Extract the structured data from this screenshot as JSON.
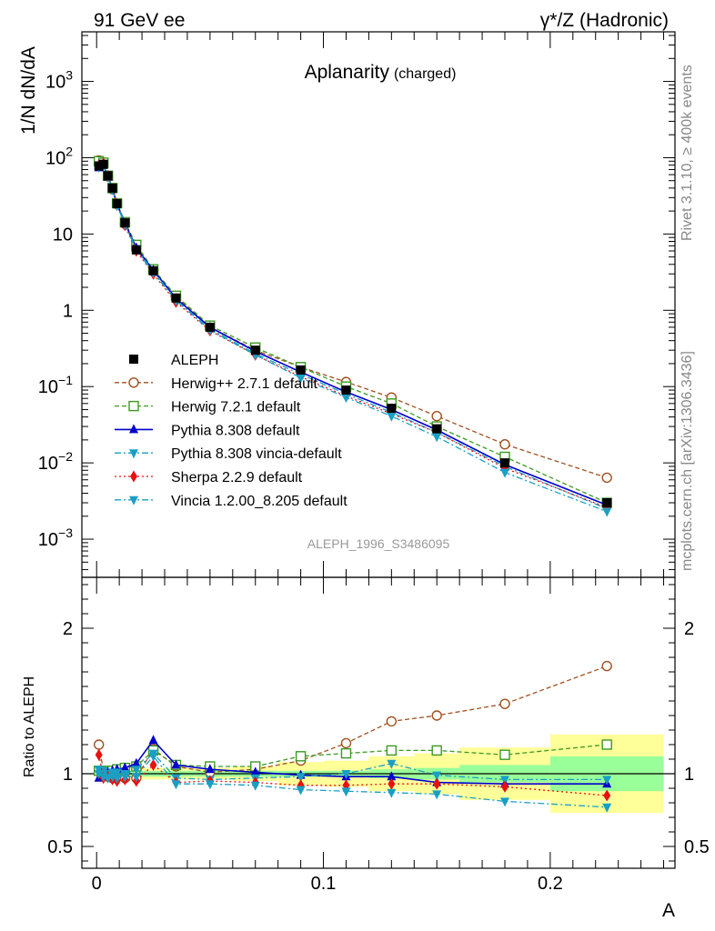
{
  "header": {
    "left": "91 GeV ee",
    "right": "γ*/Z (Hadronic)"
  },
  "title": "Aplanarity",
  "subtitle": "(charged)",
  "side_text": {
    "rivet": "Rivet 3.1.10, ≥ 400k events",
    "mcplots": "mcplots.cern.ch [arXiv:1306.3436]"
  },
  "analysis_label": "ALEPH_1996_S3486095",
  "main_ylabel": "1/N dN/dA",
  "ratio_ylabel": "Ratio to ALEPH",
  "xlabel": "A",
  "main_yticks": [
    {
      "value": 1000,
      "base": "10",
      "exp": "3"
    },
    {
      "value": 100,
      "base": "10",
      "exp": "2"
    },
    {
      "value": 10,
      "base": "10",
      "exp": ""
    },
    {
      "value": 1,
      "base": "1",
      "exp": ""
    },
    {
      "value": 0.1,
      "base": "10",
      "exp": "−1"
    },
    {
      "value": 0.01,
      "base": "10",
      "exp": "−2"
    },
    {
      "value": 0.001,
      "base": "10",
      "exp": "−3"
    }
  ],
  "ratio_yticks": [
    {
      "value": 2,
      "label": "2"
    },
    {
      "value": 1,
      "label": "1"
    },
    {
      "value": 0.5,
      "label": "0.5"
    }
  ],
  "xticks": [
    {
      "value": 0,
      "label": "0"
    },
    {
      "value": 0.1,
      "label": "0.1"
    },
    {
      "value": 0.2,
      "label": "0.2"
    }
  ],
  "colors": {
    "data": "#000000",
    "herwigpp": "#a0501e",
    "herwig7": "#3c9a22",
    "pythia": "#0000cc",
    "pythia_vincia": "#1a9fc4",
    "sherpa": "#e81010",
    "vincia": "#1a9fc4",
    "band_yellow": "#ffff99",
    "band_green": "#99ff99"
  },
  "chart_data": {
    "type": "line",
    "x": [
      0.001,
      0.003,
      0.005,
      0.007,
      0.009,
      0.0125,
      0.0175,
      0.025,
      0.035,
      0.05,
      0.07,
      0.09,
      0.11,
      0.13,
      0.15,
      0.18,
      0.225
    ],
    "xlim": [
      -0.0065,
      0.255
    ],
    "main_ylim_log10": [
      -3.5,
      3.65
    ],
    "ratio_ylim": [
      0.35,
      2.35
    ],
    "band_edges": [
      0.0,
      0.002,
      0.004,
      0.006,
      0.008,
      0.01,
      0.015,
      0.02,
      0.03,
      0.04,
      0.06,
      0.08,
      0.1,
      0.12,
      0.14,
      0.16,
      0.2,
      0.25
    ],
    "band_stat": [
      0.02,
      0.02,
      0.02,
      0.02,
      0.02,
      0.02,
      0.02,
      0.02,
      0.02,
      0.02,
      0.02,
      0.02,
      0.02,
      0.03,
      0.04,
      0.06,
      0.12
    ],
    "band_total": [
      0.04,
      0.04,
      0.04,
      0.04,
      0.04,
      0.04,
      0.04,
      0.04,
      0.04,
      0.04,
      0.05,
      0.08,
      0.09,
      0.12,
      0.14,
      0.18,
      0.27
    ],
    "data": {
      "name": "ALEPH",
      "values": [
        78,
        82,
        58,
        40,
        25,
        14,
        6.2,
        3.3,
        1.45,
        0.6,
        0.3,
        0.165,
        0.09,
        0.052,
        0.028,
        0.01,
        0.003
      ]
    },
    "series": [
      {
        "name": "Herwig++ 2.7.1 default",
        "values": [
          92,
          84,
          57,
          38.5,
          24.5,
          13.6,
          6.3,
          3.28,
          1.5,
          0.6,
          0.3,
          0.18,
          0.115,
          0.072,
          0.041,
          0.0175,
          0.0064
        ],
        "ratio": [
          1.2,
          1.02,
          0.98,
          0.97,
          0.98,
          0.97,
          0.97,
          1.17,
          1.05,
          1.01,
          1.03,
          1.09,
          1.21,
          1.36,
          1.4,
          1.48,
          1.74
        ],
        "color_key": "herwig7",
        "stroke_key": "herwigpp",
        "marker": "open-circle",
        "dash": "5,3"
      },
      {
        "name": "Herwig 7.2.1 default",
        "values": [
          90,
          86,
          58,
          40,
          25.3,
          14.3,
          7.2,
          3.45,
          1.55,
          0.63,
          0.325,
          0.18,
          0.1,
          0.06,
          0.03,
          0.012,
          0.003
        ],
        "ratio": [
          1.02,
          1.02,
          1.01,
          1.02,
          1.03,
          1.04,
          1.05,
          1.16,
          1.06,
          1.05,
          1.05,
          1.12,
          1.14,
          1.16,
          1.16,
          1.13,
          1.2
        ],
        "stroke_key": "herwig7",
        "marker": "open-square",
        "dash": "5,3"
      },
      {
        "name": "Pythia 8.308 default",
        "values": [
          74,
          80,
          56,
          39,
          24.5,
          13.8,
          6.6,
          3.35,
          1.43,
          0.6,
          0.29,
          0.155,
          0.085,
          0.05,
          0.027,
          0.0095,
          0.0028
        ],
        "ratio": [
          0.97,
          0.99,
          1.01,
          1.02,
          1.03,
          1.04,
          1.07,
          1.23,
          1.06,
          1.03,
          1.01,
          0.99,
          0.98,
          0.98,
          0.94,
          0.93,
          0.93
        ],
        "stroke_key": "pythia",
        "marker": "filled-triangle-up",
        "dash": ""
      },
      {
        "name": "Pythia 8.308 vincia-default",
        "values": [
          76,
          81,
          57,
          39.5,
          24.6,
          13.7,
          6.4,
          3.25,
          1.38,
          0.57,
          0.27,
          0.145,
          0.08,
          0.046,
          0.025,
          0.009,
          0.0025
        ],
        "ratio": [
          1.03,
          1.02,
          1.0,
          1.01,
          1.01,
          1.0,
          1.03,
          1.14,
          0.97,
          0.96,
          0.97,
          0.98,
          1.0,
          1.07,
          0.99,
          0.96,
          0.96
        ],
        "stroke_key": "pythia_vincia",
        "marker": "filled-triangle-down",
        "dash": "7,3,2,3"
      },
      {
        "name": "Sherpa 2.2.9 default",
        "values": [
          80,
          84,
          58,
          39,
          24.5,
          13,
          6,
          3.0,
          1.28,
          0.54,
          0.26,
          0.135,
          0.075,
          0.044,
          0.025,
          0.0085,
          0.0026
        ],
        "ratio": [
          1.13,
          0.97,
          0.98,
          0.96,
          0.95,
          0.96,
          0.95,
          1.06,
          0.94,
          0.95,
          0.94,
          0.92,
          0.92,
          0.93,
          0.93,
          0.91,
          0.85
        ],
        "stroke_key": "sherpa",
        "marker": "filled-diamond",
        "dash": "2,3"
      },
      {
        "name": "Vincia 1.2.00_8.205 default",
        "values": [
          75,
          80,
          56,
          38,
          23.5,
          13.3,
          6.2,
          3.1,
          1.34,
          0.55,
          0.26,
          0.13,
          0.072,
          0.041,
          0.022,
          0.0075,
          0.0023
        ],
        "ratio": [
          1.0,
          0.98,
          0.97,
          0.98,
          0.97,
          0.98,
          0.98,
          1.12,
          0.93,
          0.93,
          0.92,
          0.89,
          0.88,
          0.87,
          0.86,
          0.81,
          0.77
        ],
        "stroke_key": "vincia",
        "marker": "filled-triangle-down",
        "dash": "7,3,2,3"
      }
    ]
  }
}
